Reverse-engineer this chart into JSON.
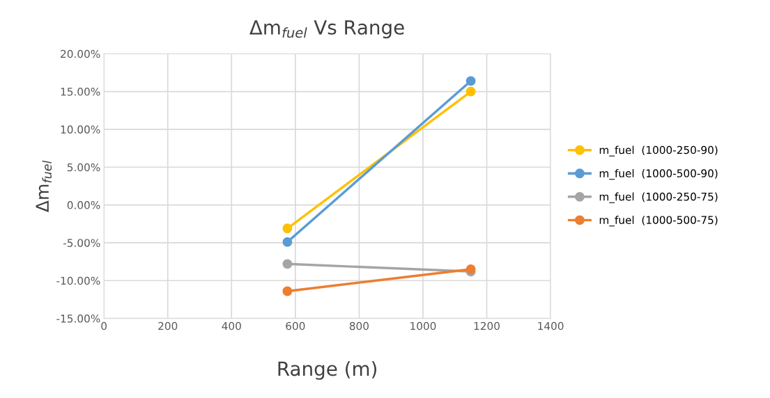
{
  "chart_data": {
    "type": "line",
    "title": "Δm$_{fuel}$ Vs Range",
    "xlabel": "Range (m)",
    "ylabel": "Δm$_{fuel}$",
    "x": [
      575,
      1150
    ],
    "series": [
      {
        "name": "m_fuel  (1000-250-90)",
        "color": "#ffc000",
        "values": [
          -3.1,
          15.0
        ]
      },
      {
        "name": "m_fuel  (1000-500-90)",
        "color": "#5b9bd5",
        "values": [
          -4.9,
          16.4
        ]
      },
      {
        "name": "m_fuel  (1000-250-75)",
        "color": "#a5a5a5",
        "values": [
          -7.8,
          -8.8
        ]
      },
      {
        "name": "m_fuel  (1000-500-75)",
        "color": "#ed7d31",
        "values": [
          -11.4,
          -8.5
        ]
      }
    ],
    "xlim": [
      0,
      1400
    ],
    "xticks": [
      0,
      200,
      400,
      600,
      800,
      1000,
      1200,
      1400
    ],
    "ylim": [
      -15,
      20
    ],
    "yticks": [
      {
        "value": -15,
        "label": "-15.00%"
      },
      {
        "value": -10,
        "label": "-10.00%"
      },
      {
        "value": -5,
        "label": "-5.00%"
      },
      {
        "value": 0,
        "label": "0.00%"
      },
      {
        "value": 5,
        "label": "5.00%"
      },
      {
        "value": 10,
        "label": "10.00%"
      },
      {
        "value": 15,
        "label": "15.00%"
      },
      {
        "value": 20,
        "label": "20.00%"
      }
    ],
    "grid": true,
    "legend": "right",
    "marker": "circle",
    "line_style": "solid"
  }
}
